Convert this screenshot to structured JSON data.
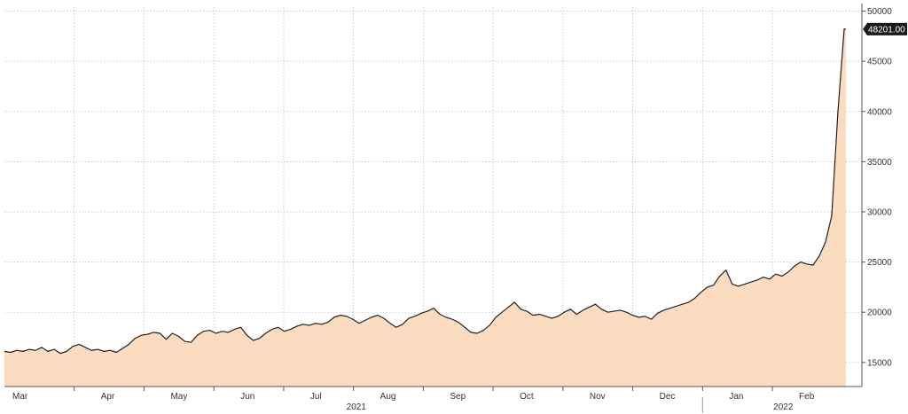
{
  "chart_data": {
    "type": "area",
    "title": "",
    "xlabel": "",
    "ylabel": "",
    "ylim": [
      12600,
      50400
    ],
    "y_ticks": [
      15000,
      20000,
      25000,
      30000,
      35000,
      40000,
      45000,
      50000
    ],
    "y_tick_labels": [
      "15000",
      "20000",
      "25000",
      "30000",
      "35000",
      "40000",
      "45000",
      "50000"
    ],
    "y_axis_side": "right",
    "grid": true,
    "months": [
      "Mar",
      "Apr",
      "May",
      "Jun",
      "Jul",
      "Aug",
      "Sep",
      "Oct",
      "Nov",
      "Dec",
      "Jan",
      "Feb"
    ],
    "years": [
      "2021",
      "2022"
    ],
    "last_value_label": "48201.00",
    "colors": {
      "fill": "#fbdcc0",
      "line": "#222222",
      "grid": "#bbbbbb",
      "badge": "#1a1a1a"
    },
    "series": [
      {
        "values": [
          16100,
          16000,
          16200,
          16100,
          16300,
          16200,
          16500,
          16100,
          16300,
          15900,
          16100,
          16600,
          16800,
          16500,
          16200,
          16300,
          16100,
          16200,
          16000,
          16400,
          16800,
          17400,
          17700,
          17800,
          18000,
          17900,
          17300,
          17900,
          17600,
          17100,
          17000,
          17700,
          18100,
          18200,
          17900,
          18100,
          18000,
          18300,
          18500,
          17700,
          17200,
          17400,
          17900,
          18300,
          18500,
          18100,
          18300,
          18600,
          18800,
          18700,
          18900,
          18800,
          19000,
          19500,
          19700,
          19600,
          19300,
          18900,
          19200,
          19500,
          19700,
          19400,
          18900,
          18500,
          18800,
          19400,
          19600,
          19900,
          20100,
          20400,
          19800,
          19500,
          19300,
          19000,
          18500,
          18000,
          17900,
          18200,
          18700,
          19500,
          20000,
          20500,
          21000,
          20300,
          20100,
          19700,
          19800,
          19600,
          19400,
          19600,
          20000,
          20300,
          19800,
          20200,
          20500,
          20800,
          20300,
          20000,
          20100,
          20200,
          20000,
          19700,
          19500,
          19600,
          19300,
          19900,
          20200,
          20400,
          20600,
          20800,
          21000,
          21400,
          22000,
          22500,
          22700,
          23600,
          24200,
          22800,
          22600,
          22800,
          23000,
          23200,
          23500,
          23300,
          23800,
          23600,
          24000,
          24600,
          25000,
          24800,
          24700,
          25600,
          27000,
          29600,
          40000,
          48201
        ]
      }
    ]
  }
}
